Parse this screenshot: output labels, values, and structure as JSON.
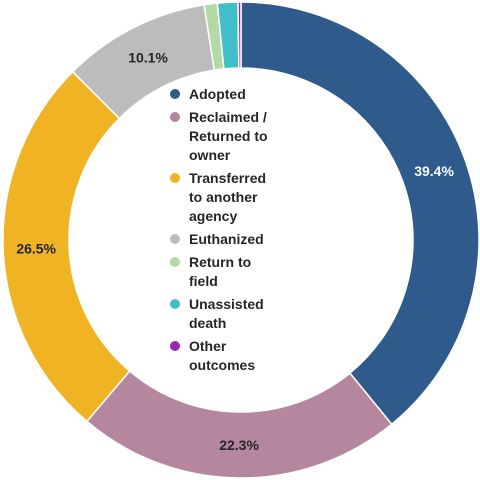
{
  "chart_data": {
    "type": "pie",
    "subtype": "donut",
    "title": "",
    "categories": [
      "Adopted",
      "Reclaimed / Returned to owner",
      "Transferred to another agency",
      "Euthanized",
      "Return to field",
      "Unassisted death",
      "Other outcomes"
    ],
    "values": [
      39.4,
      22.3,
      26.5,
      10.1,
      0.9,
      1.4,
      0.2
    ],
    "value_labels": [
      "39.4%",
      "22.3%",
      "26.5%",
      "10.1%",
      "",
      "",
      ""
    ],
    "colors": [
      "#2e5a8c",
      "#b4879f",
      "#f0b323",
      "#bcbcbc",
      "#b3d9a6",
      "#40bfc9",
      "#9c27b0"
    ],
    "label_colors": [
      "#ffffff",
      "#262626",
      "#262626",
      "#262626",
      "#262626",
      "#262626",
      "#262626"
    ],
    "legend": {
      "placement": "center",
      "items": [
        {
          "label": "Adopted",
          "color": "#2e5a8c"
        },
        {
          "label": "Reclaimed /\nReturned to\nowner",
          "color": "#b4879f"
        },
        {
          "label": "Transferred\nto another\nagency",
          "color": "#f0b323"
        },
        {
          "label": "Euthanized",
          "color": "#bcbcbc"
        },
        {
          "label": "Return to\nfield",
          "color": "#b3d9a6"
        },
        {
          "label": "Unassisted\ndeath",
          "color": "#40bfc9"
        },
        {
          "label": "Other\noutcomes",
          "color": "#9c27b0"
        }
      ]
    }
  }
}
